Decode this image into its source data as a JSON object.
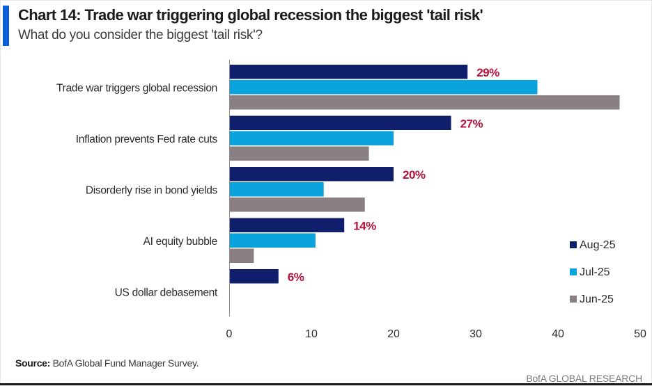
{
  "title": "Chart 14: Trade war triggering global recession the biggest 'tail risk'",
  "subtitle": "What do you consider the biggest 'tail risk'?",
  "source_label": "Source:",
  "source_text": "BofA Global Fund Manager Survey.",
  "brand": "BofA GLOBAL RESEARCH",
  "colors": {
    "Aug-25": "#0f1f6b",
    "Jul-25": "#0aa3dd",
    "Jun-25": "#8a7f82",
    "value_label": "#b3123a",
    "accent": "#0a5fd6"
  },
  "chart_data": {
    "type": "bar",
    "orientation": "horizontal",
    "categories": [
      "Trade war triggers global recession",
      "Inflation prevents Fed rate cuts",
      "Disorderly rise in bond yields",
      "AI equity bubble",
      "US dollar debasement"
    ],
    "series": [
      {
        "name": "Aug-25",
        "values": [
          29,
          27,
          20,
          14,
          6
        ]
      },
      {
        "name": "Jul-25",
        "values": [
          37.5,
          20,
          11.5,
          10.5,
          0
        ]
      },
      {
        "name": "Jun-25",
        "values": [
          47.5,
          17,
          16.5,
          3,
          0
        ]
      }
    ],
    "data_labels": [
      "29%",
      "27%",
      "20%",
      "14%",
      "6%"
    ],
    "xlim": [
      0,
      50
    ],
    "x_ticks": [
      0,
      10,
      20,
      30,
      40,
      50
    ],
    "legend": [
      "Aug-25",
      "Jul-25",
      "Jun-25"
    ],
    "legend_position": "bottom-right",
    "grid": false
  }
}
